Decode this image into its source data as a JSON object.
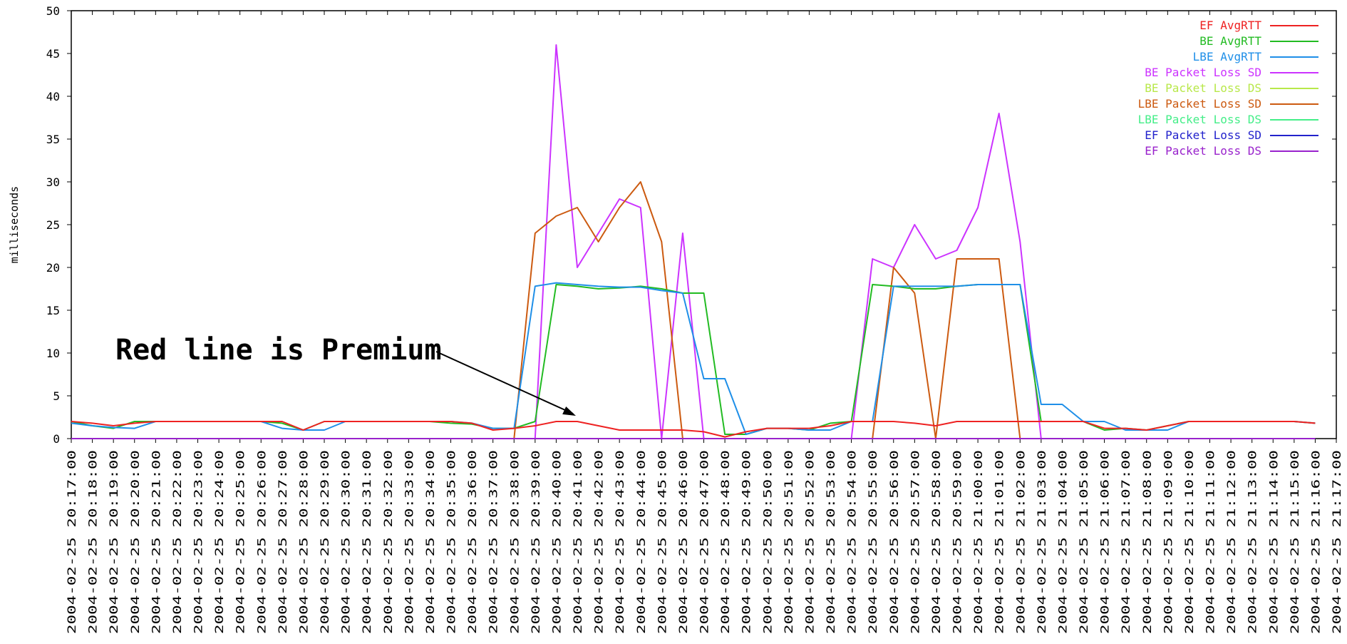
{
  "chart_data": {
    "type": "line",
    "title": "",
    "xlabel": "",
    "ylabel": "milliseconds",
    "ylim": [
      0,
      50
    ],
    "yticks": [
      "0",
      "5",
      "10",
      "15",
      "20",
      "25",
      "30",
      "35",
      "40",
      "45",
      "50"
    ],
    "grid": false,
    "legend_position": "top-right",
    "x": [
      "20:17:00",
      "20:18:00",
      "20:19:00",
      "20:20:00",
      "20:21:00",
      "20:22:00",
      "20:23:00",
      "20:24:00",
      "20:25:00",
      "20:26:00",
      "20:27:00",
      "20:28:00",
      "20:29:00",
      "20:30:00",
      "20:31:00",
      "20:32:00",
      "20:33:00",
      "20:34:00",
      "20:35:00",
      "20:36:00",
      "20:37:00",
      "20:38:00",
      "20:39:00",
      "20:40:00",
      "20:41:00",
      "20:42:00",
      "20:43:00",
      "20:44:00",
      "20:45:00",
      "20:46:00",
      "20:47:00",
      "20:48:00",
      "20:49:00",
      "20:50:00",
      "20:51:00",
      "20:52:00",
      "20:53:00",
      "20:54:00",
      "20:55:00",
      "20:56:00",
      "20:57:00",
      "20:58:00",
      "20:59:00",
      "21:00:00",
      "21:01:00",
      "21:02:00",
      "21:03:00",
      "21:04:00",
      "21:05:00",
      "21:06:00",
      "21:07:00",
      "21:08:00",
      "21:09:00",
      "21:10:00",
      "21:11:00",
      "21:12:00",
      "21:13:00",
      "21:14:00",
      "21:15:00",
      "21:16:00",
      "21:17:00"
    ],
    "x_tick_labels": [
      "2004-02-25 20:17:00",
      "2004-02-25 20:18:00",
      "2004-02-25 20:19:00",
      "2004-02-25 20:20:00",
      "2004-02-25 20:21:00",
      "2004-02-25 20:22:00",
      "2004-02-25 20:23:00",
      "2004-02-25 20:24:00",
      "2004-02-25 20:25:00",
      "2004-02-25 20:26:00",
      "2004-02-25 20:27:00",
      "2004-02-25 20:28:00",
      "2004-02-25 20:29:00",
      "2004-02-25 20:30:00",
      "2004-02-25 20:31:00",
      "2004-02-25 20:32:00",
      "2004-02-25 20:33:00",
      "2004-02-25 20:34:00",
      "2004-02-25 20:35:00",
      "2004-02-25 20:36:00",
      "2004-02-25 20:37:00",
      "2004-02-25 20:38:00",
      "2004-02-25 20:39:00",
      "2004-02-25 20:40:00",
      "2004-02-25 20:41:00",
      "2004-02-25 20:42:00",
      "2004-02-25 20:43:00",
      "2004-02-25 20:44:00",
      "2004-02-25 20:45:00",
      "2004-02-25 20:46:00",
      "2004-02-25 20:47:00",
      "2004-02-25 20:48:00",
      "2004-02-25 20:49:00",
      "2004-02-25 20:50:00",
      "2004-02-25 20:51:00",
      "2004-02-25 20:52:00",
      "2004-02-25 20:53:00",
      "2004-02-25 20:54:00",
      "2004-02-25 20:55:00",
      "2004-02-25 20:56:00",
      "2004-02-25 20:57:00",
      "2004-02-25 20:58:00",
      "2004-02-25 20:59:00",
      "2004-02-25 21:00:00",
      "2004-02-25 21:01:00",
      "2004-02-25 21:02:00",
      "2004-02-25 21:03:00",
      "2004-02-25 21:04:00",
      "2004-02-25 21:05:00",
      "2004-02-25 21:06:00",
      "2004-02-25 21:07:00",
      "2004-02-25 21:08:00",
      "2004-02-25 21:09:00",
      "2004-02-25 21:10:00",
      "2004-02-25 21:11:00",
      "2004-02-25 21:12:00",
      "2004-02-25 21:13:00",
      "2004-02-25 21:14:00",
      "2004-02-25 21:15:00",
      "2004-02-25 21:16:00",
      "2004-02-25 21:17:00"
    ],
    "series": [
      {
        "name": "BE Packet Loss SD",
        "color": "#cc33ff",
        "values": [
          0,
          0,
          0,
          0,
          0,
          0,
          0,
          0,
          0,
          0,
          0,
          0,
          0,
          0,
          0,
          0,
          0,
          0,
          0,
          0,
          0,
          0,
          0,
          46,
          20,
          24,
          28,
          27,
          0,
          24,
          0,
          0,
          0,
          0,
          0,
          0,
          0,
          0,
          21,
          20,
          25,
          21,
          22,
          27,
          38,
          23,
          0,
          0,
          0,
          0,
          0,
          0,
          0,
          0,
          0,
          0,
          0,
          0,
          0,
          0,
          null
        ]
      },
      {
        "name": "LBE Packet Loss SD",
        "color": "#cc5a10",
        "values": [
          0,
          0,
          0,
          0,
          0,
          0,
          0,
          0,
          0,
          0,
          0,
          0,
          0,
          0,
          0,
          0,
          0,
          0,
          0,
          0,
          0,
          0,
          24,
          26,
          27,
          23,
          27,
          30,
          23,
          0,
          0,
          0,
          0,
          0,
          0,
          0,
          0,
          0,
          0,
          20,
          17,
          0,
          21,
          21,
          21,
          0,
          0,
          0,
          0,
          0,
          0,
          0,
          0,
          0,
          0,
          0,
          0,
          0,
          0,
          0,
          null
        ]
      },
      {
        "name": "BE Packet Loss DS",
        "color": "#b8e84a",
        "values": [
          0,
          0,
          0,
          0,
          0,
          0,
          0,
          0,
          0,
          0,
          0,
          0,
          0,
          0,
          0,
          0,
          0,
          0,
          0,
          0,
          0,
          0,
          0,
          0,
          0,
          0,
          0,
          0,
          0,
          0,
          0,
          0,
          0,
          0,
          0,
          0,
          0,
          0,
          0,
          0,
          0,
          0,
          0,
          0,
          0,
          0,
          0,
          0,
          0,
          0,
          0,
          0,
          0,
          0,
          0,
          0,
          0,
          0,
          0,
          0,
          null
        ]
      },
      {
        "name": "LBE Packet Loss DS",
        "color": "#44ee88",
        "values": [
          0,
          0,
          0,
          0,
          0,
          0,
          0,
          0,
          0,
          0,
          0,
          0,
          0,
          0,
          0,
          0,
          0,
          0,
          0,
          0,
          0,
          0,
          0,
          0,
          0,
          0,
          0,
          0,
          0,
          0,
          0,
          0,
          0,
          0,
          0,
          0,
          0,
          0,
          0,
          0,
          0,
          0,
          0,
          0,
          0,
          0,
          0,
          0,
          0,
          0,
          0,
          0,
          0,
          0,
          0,
          0,
          0,
          0,
          0,
          0,
          null
        ]
      },
      {
        "name": "EF Packet Loss SD",
        "color": "#2222cc",
        "values": [
          0,
          0,
          0,
          0,
          0,
          0,
          0,
          0,
          0,
          0,
          0,
          0,
          0,
          0,
          0,
          0,
          0,
          0,
          0,
          0,
          0,
          0,
          0,
          0,
          0,
          0,
          0,
          0,
          0,
          0,
          0,
          0,
          0,
          0,
          0,
          0,
          0,
          0,
          0,
          0,
          0,
          0,
          0,
          0,
          0,
          0,
          0,
          0,
          0,
          0,
          0,
          0,
          0,
          0,
          0,
          0,
          0,
          0,
          0,
          0,
          null
        ]
      },
      {
        "name": "EF Packet Loss DS",
        "color": "#9922cc",
        "values": [
          0,
          0,
          0,
          0,
          0,
          0,
          0,
          0,
          0,
          0,
          0,
          0,
          0,
          0,
          0,
          0,
          0,
          0,
          0,
          0,
          0,
          0,
          0,
          0,
          0,
          0,
          0,
          0,
          0,
          0,
          0,
          0,
          0,
          0,
          0,
          0,
          0,
          0,
          0,
          0,
          0,
          0,
          0,
          0,
          0,
          0,
          0,
          0,
          0,
          0,
          0,
          0,
          0,
          0,
          0,
          0,
          0,
          0,
          0,
          0,
          null
        ]
      },
      {
        "name": "BE AvgRTT",
        "color": "#22bb22",
        "values": [
          2,
          1.5,
          1.2,
          2,
          2,
          2,
          2,
          2,
          2,
          2,
          1.8,
          1,
          2,
          2,
          2,
          2,
          2,
          2,
          1.8,
          1.7,
          1.2,
          1.2,
          2,
          18,
          17.8,
          17.5,
          17.6,
          17.8,
          17.5,
          17,
          17,
          0.5,
          0.5,
          1.2,
          1.2,
          1,
          1.8,
          2,
          18,
          17.8,
          17.5,
          17.5,
          17.8,
          18,
          18,
          18,
          2,
          2,
          2,
          1,
          1.2,
          1,
          1.5,
          2,
          2,
          2,
          2,
          2,
          2,
          1.8,
          null
        ]
      },
      {
        "name": "LBE AvgRTT",
        "color": "#1f8fe8",
        "values": [
          1.8,
          1.5,
          1.3,
          1.2,
          2,
          2,
          2,
          2,
          2,
          2,
          1.2,
          1,
          1,
          2,
          2,
          2,
          2,
          2,
          2,
          1.8,
          1.2,
          1.2,
          17.8,
          18.2,
          18,
          17.8,
          17.7,
          17.7,
          17.3,
          17,
          7,
          7,
          0.5,
          1.2,
          1.2,
          1,
          1,
          2,
          2,
          17.8,
          17.8,
          17.8,
          17.8,
          18,
          18,
          18,
          4,
          4,
          2,
          2,
          1,
          1,
          1,
          2,
          2,
          2,
          2,
          2,
          2,
          1.8,
          null
        ]
      },
      {
        "name": "EF AvgRTT",
        "color": "#ee2222",
        "values": [
          2,
          1.8,
          1.5,
          1.8,
          2,
          2,
          2,
          2,
          2,
          2,
          2,
          1,
          2,
          2,
          2,
          2,
          2,
          2,
          2,
          1.8,
          1,
          1.2,
          1.5,
          2,
          2,
          1.5,
          1,
          1,
          1,
          1,
          0.8,
          0.2,
          0.8,
          1.2,
          1.2,
          1.2,
          1.5,
          2,
          2,
          2,
          1.8,
          1.5,
          2,
          2,
          2,
          2,
          2,
          2,
          2,
          1.2,
          1.2,
          1,
          1.5,
          2,
          2,
          2,
          2,
          2,
          2,
          1.8,
          null
        ]
      }
    ],
    "legend_order": [
      "EF AvgRTT",
      "BE AvgRTT",
      "LBE AvgRTT",
      "BE Packet Loss SD",
      "BE Packet Loss DS",
      "LBE Packet Loss SD",
      "LBE Packet Loss DS",
      "EF Packet Loss SD",
      "EF Packet Loss DS"
    ],
    "annotation": {
      "text": "Red line is Premium",
      "arrow_to": {
        "x": "20:41:00",
        "y": 2.5
      }
    }
  }
}
